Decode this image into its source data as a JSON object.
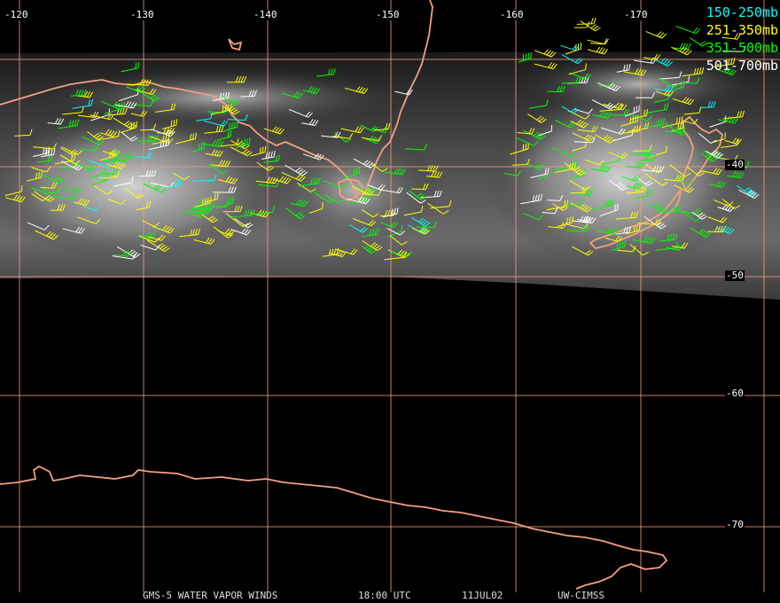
{
  "image": {
    "title_product": "GMS-5 WATER VAPOR WINDS",
    "time": "18:00 UTC",
    "date": "11JUL02",
    "source": "UW-CIMSS"
  },
  "legend": [
    {
      "label": "150-250mb",
      "color": "#00ffff"
    },
    {
      "label": "251-350mb",
      "color": "#ffff00"
    },
    {
      "label": "351-500mb",
      "color": "#00ff00"
    },
    {
      "label": "501-700mb",
      "color": "#ffffff"
    }
  ],
  "graticule": {
    "color": "#f4a080",
    "longitude_labels": [
      "-120",
      "-130",
      "-140",
      "-150",
      "-160",
      "-170"
    ],
    "latitude_labels": [
      "-40",
      "-50",
      "-60",
      "-70"
    ]
  },
  "coastline_color": "#f4a080",
  "imagery_extent_south_lat": -50
}
